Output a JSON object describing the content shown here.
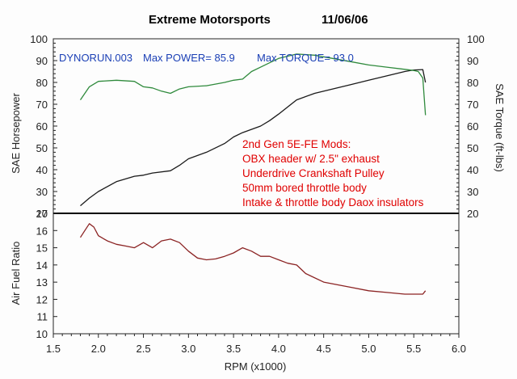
{
  "chart_data": {
    "type": "line",
    "title_left": "Extreme Motorsports",
    "title_date": "11/06/06",
    "info": {
      "run_id": "DYNORUN.003",
      "max_power": "Max POWER= 85.9",
      "max_torque": "Max TORQUE= 93.0"
    },
    "annotation_lines": [
      "2nd Gen 5E-FE Mods:",
      "OBX header w/ 2.5\" exhaust",
      "Underdrive Crankshaft Pulley",
      "50mm bored throttle body",
      "Intake & throttle body Daox insulators"
    ],
    "xlabel": "RPM (x1000)",
    "xlim": [
      1.5,
      6.0
    ],
    "x_ticks": [
      "1.5",
      "2.0",
      "2.5",
      "3.0",
      "3.5",
      "4.0",
      "4.5",
      "5.0",
      "5.5",
      "6.0"
    ],
    "top_panel": {
      "ylabel_left": "SAE Horsepower",
      "ylabel_right": "SAE Torque (ft-lbs)",
      "ylim": [
        20,
        100
      ],
      "y_ticks": [
        "20",
        "30",
        "40",
        "50",
        "60",
        "70",
        "80",
        "90",
        "100"
      ],
      "series": [
        {
          "name": "SAE Horsepower",
          "color": "#1a1a1a",
          "x": [
            1.8,
            1.9,
            2.0,
            2.2,
            2.4,
            2.5,
            2.6,
            2.8,
            2.9,
            3.0,
            3.2,
            3.4,
            3.5,
            3.6,
            3.8,
            3.9,
            4.0,
            4.2,
            4.4,
            4.6,
            4.8,
            5.0,
            5.2,
            5.4,
            5.5,
            5.6,
            5.63
          ],
          "y": [
            23.5,
            27,
            30,
            34.5,
            37,
            37.5,
            38.5,
            39.5,
            42,
            45,
            48,
            52,
            55,
            57,
            60,
            62.5,
            65.5,
            72,
            75,
            77,
            79,
            81,
            83,
            85,
            85.7,
            85.9,
            80
          ]
        },
        {
          "name": "SAE Torque (ft-lbs)",
          "color": "#2f8a3c",
          "x": [
            1.8,
            1.9,
            2.0,
            2.2,
            2.4,
            2.5,
            2.6,
            2.7,
            2.8,
            2.9,
            3.0,
            3.2,
            3.4,
            3.5,
            3.6,
            3.7,
            3.8,
            3.9,
            4.0,
            4.2,
            4.4,
            4.6,
            4.8,
            5.0,
            5.2,
            5.4,
            5.5,
            5.55,
            5.6,
            5.63
          ],
          "y": [
            72,
            78,
            80.5,
            81,
            80.5,
            78,
            77.5,
            76,
            75,
            77,
            78,
            78.5,
            80,
            81,
            81.5,
            85,
            87,
            89,
            91,
            93,
            92.5,
            91,
            89.5,
            88,
            87,
            86,
            85.5,
            85,
            82,
            65
          ]
        }
      ]
    },
    "bottom_panel": {
      "ylabel": "Air Fuel Ratio",
      "ylim": [
        10,
        17
      ],
      "y_ticks": [
        "10",
        "11",
        "12",
        "13",
        "14",
        "15",
        "16",
        "17"
      ],
      "series": [
        {
          "name": "Air Fuel Ratio",
          "color": "#8b2323",
          "x": [
            1.8,
            1.85,
            1.9,
            1.95,
            2.0,
            2.1,
            2.2,
            2.3,
            2.4,
            2.5,
            2.6,
            2.7,
            2.8,
            2.9,
            3.0,
            3.1,
            3.2,
            3.3,
            3.4,
            3.5,
            3.6,
            3.7,
            3.8,
            3.9,
            4.0,
            4.1,
            4.2,
            4.3,
            4.5,
            4.8,
            5.0,
            5.2,
            5.4,
            5.5,
            5.6,
            5.63
          ],
          "y": [
            15.6,
            16.0,
            16.4,
            16.2,
            15.7,
            15.4,
            15.2,
            15.1,
            15.0,
            15.3,
            15.0,
            15.4,
            15.5,
            15.3,
            14.8,
            14.4,
            14.3,
            14.35,
            14.5,
            14.7,
            15.0,
            14.8,
            14.5,
            14.5,
            14.3,
            14.1,
            14.0,
            13.5,
            13.0,
            12.7,
            12.5,
            12.4,
            12.3,
            12.3,
            12.3,
            12.5
          ]
        }
      ]
    },
    "grid": false
  }
}
